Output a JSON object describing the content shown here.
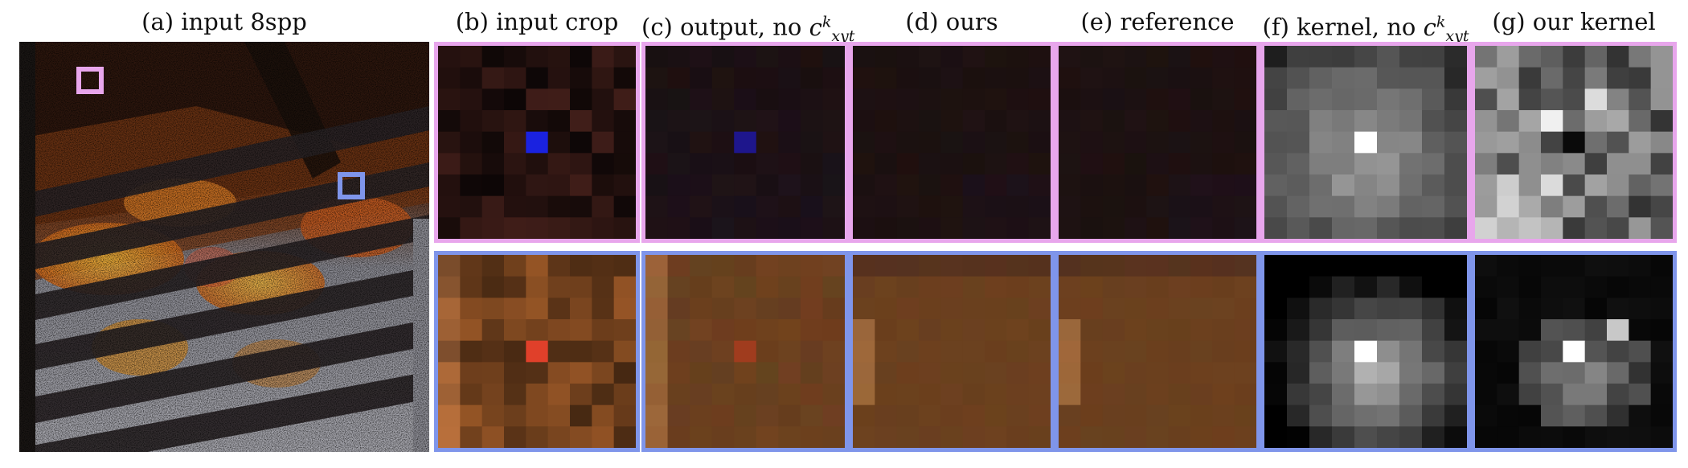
{
  "figure": {
    "captions": [
      {
        "key": "a",
        "text": "(a) input 8spp"
      },
      {
        "key": "b",
        "text": "(b) input crop"
      },
      {
        "key": "c",
        "text": "(c) output, no ",
        "math_base": "c",
        "math_sup": "k",
        "math_sub": "xyt"
      },
      {
        "key": "d",
        "text": "(d) ours"
      },
      {
        "key": "e",
        "text": "(e) reference"
      },
      {
        "key": "f",
        "text": "(f) kernel, no ",
        "math_base": "c",
        "math_sup": "k",
        "math_sub": "xyt"
      },
      {
        "key": "g",
        "text": "(g) our kernel"
      }
    ],
    "rows": [
      {
        "name": "top-crop",
        "border_color": "#e8a6ec"
      },
      {
        "name": "bottom-crop",
        "border_color": "#7f95ea"
      }
    ],
    "colors": {
      "pink_marker": "#e8a6ec",
      "blue_marker": "#7f95ea",
      "top_tone": "#1a0f0e",
      "bottom_tone": "#6b3e1c",
      "outlier_blue": "#1a22e0",
      "outlier_red": "#e0402a"
    }
  }
}
